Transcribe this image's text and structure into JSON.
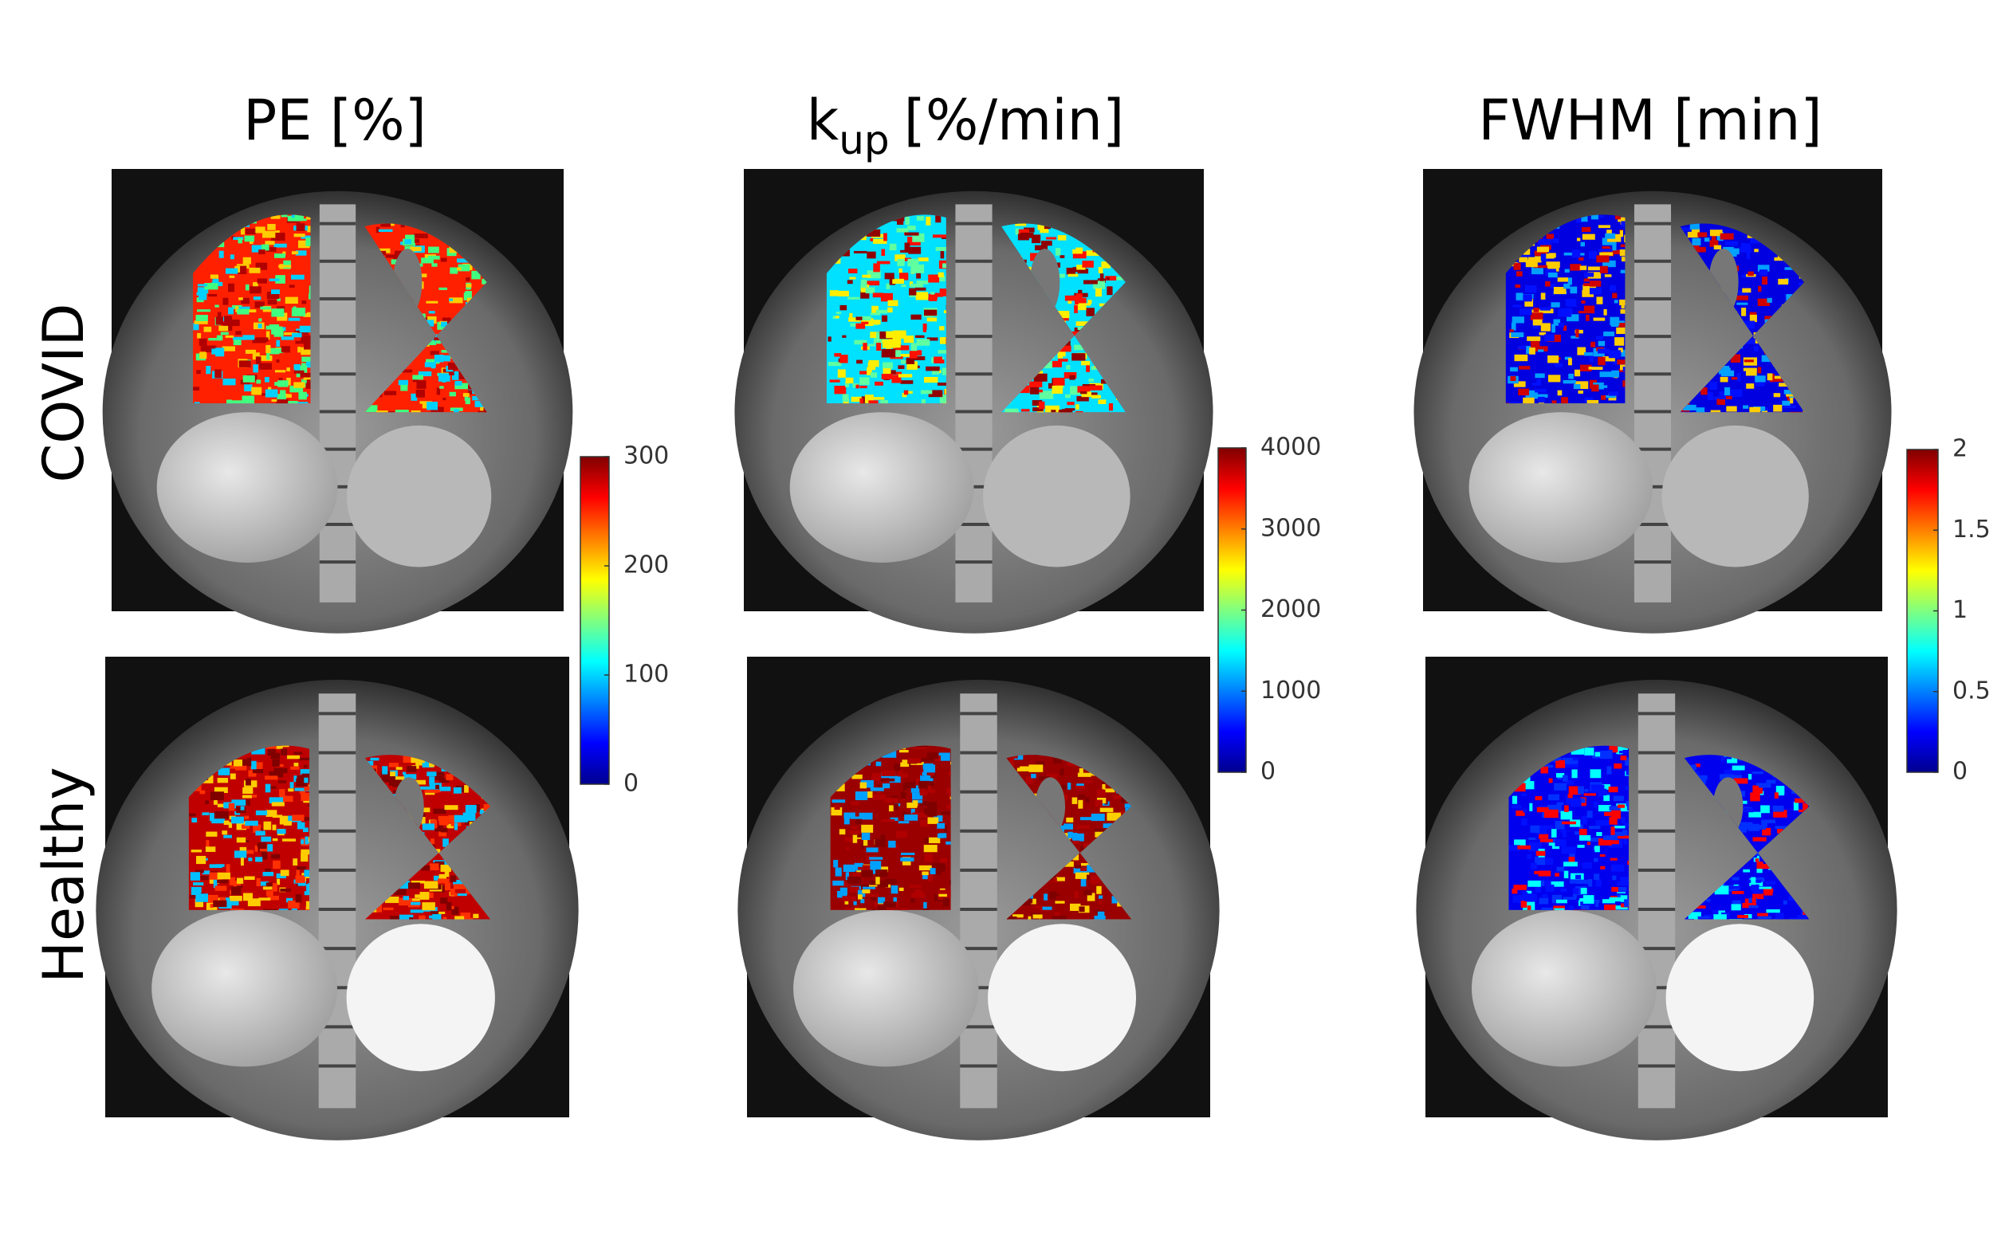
{
  "columns": [
    {
      "title": "PE [%]",
      "colorbar": {
        "lim": [
          0,
          300
        ],
        "ticks": [
          0,
          100,
          200,
          300
        ]
      }
    },
    {
      "title": "k",
      "title_sub": "up",
      "title_suffix": "[%/min]",
      "colorbar": {
        "lim": [
          0,
          4000
        ],
        "ticks": [
          0,
          1000,
          2000,
          3000,
          4000
        ]
      }
    },
    {
      "title": "FWHM [min]",
      "colorbar": {
        "lim": [
          0,
          2
        ],
        "ticks": [
          0,
          0.5,
          1,
          1.5,
          2
        ]
      }
    }
  ],
  "rows": [
    "COVID",
    "Healthy"
  ]
}
